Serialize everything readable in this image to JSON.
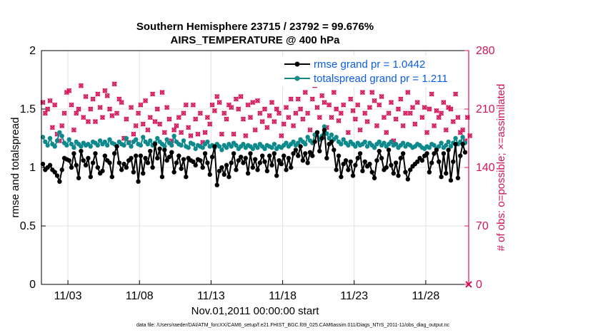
{
  "chart_data": {
    "type": "line",
    "title": [
      "Southern Hemisphere 23715 / 23792 = 99.676%",
      "AIRS_TEMPERATURE @ 400 hPa"
    ],
    "xlabel": "Nov.01,2011 00:00:00 start",
    "ylabel": "rmse and totalspread",
    "y2label": "# of obs: o=possible; ×=assimilated",
    "x_range_days": [
      1.15,
      31.0
    ],
    "xticks": [
      {
        "day": 3,
        "label": "11/03"
      },
      {
        "day": 8,
        "label": "11/08"
      },
      {
        "day": 13,
        "label": "11/13"
      },
      {
        "day": 18,
        "label": "11/18"
      },
      {
        "day": 23,
        "label": "11/23"
      },
      {
        "day": 28,
        "label": "11/28"
      }
    ],
    "ylim": [
      0,
      2
    ],
    "yticks": [
      "0",
      "0.5",
      "1",
      "1.5",
      "2"
    ],
    "y2lim": [
      0,
      280
    ],
    "y2ticks": [
      "0",
      "70",
      "140",
      "210",
      "280"
    ],
    "legend_position": "top-right",
    "colors": {
      "rmse": "#000000",
      "spread": "#0e8a8c",
      "obs": "#d4145a",
      "legend_text": "#0b5ce6"
    },
    "series": [
      {
        "name": "rmse grand pr = 1.0442",
        "axis": "left",
        "color": "#000000",
        "values": [
          1.03,
          0.98,
          1.0,
          1.02,
          0.98,
          0.96,
          0.93,
          0.88,
          0.98,
          1.08,
          1.07,
          1.06,
          1.0,
          1.12,
          1.02,
          0.91,
          1.14,
          1.06,
          1.02,
          1.08,
          0.92,
          1.04,
          1.12,
          1.0,
          0.95,
          0.97,
          1.1,
          1.06,
          1.04,
          0.92,
          1.12,
          1.18,
          1.04,
          0.98,
          1.03,
          1.0,
          1.06,
          1.08,
          0.96,
          1.1,
          0.88,
          1.1,
          0.95,
          1.08,
          1.04,
          1.14,
          1.0,
          1.2,
          1.08,
          1.16,
          0.92,
          1.15,
          1.06,
          1.09,
          1.13,
          0.96,
          1.04,
          1.1,
          0.99,
          1.07,
          0.92,
          1.08,
          1.06,
          1.05,
          1.02,
          1.07,
          1.06,
          1.0,
          1.12,
          1.04,
          0.94,
          1.09,
          1.18,
          0.85,
          0.97,
          1.0,
          0.94,
          1.02,
          0.92,
          1.04,
          1.12,
          0.98,
          1.06,
          1.09,
          1.04,
          1.08,
          0.95,
          1.12,
          1.0,
          1.07,
          0.98,
          1.04,
          1.1,
          1.05,
          0.97,
          1.1,
          1.02,
          1.12,
          0.93,
          1.06,
          1.03,
          1.1,
          0.98,
          1.08,
          1.0,
          1.12,
          1.15,
          1.1,
          1.18,
          1.06,
          1.12,
          1.04,
          1.13,
          1.1,
          1.22,
          1.3,
          1.14,
          1.25,
          1.32,
          1.08,
          1.2,
          1.22,
          1.15,
          0.98,
          1.1,
          0.92,
          1.03,
          1.06,
          0.98,
          1.05,
          0.93,
          1.02,
          1.08,
          1.12,
          0.97,
          1.05,
          1.01,
          1.03,
          0.96,
          0.91,
          1.06,
          1.14,
          1.08,
          0.98,
          1.0,
          1.15,
          1.02,
          0.95,
          1.04,
          0.93,
          1.08,
          1.12,
          0.96,
          0.9,
          0.98,
          1.01,
          1.03,
          1.05,
          1.08,
          1.06,
          1.1,
          1.12,
          0.96,
          1.04,
          1.12,
          1.15,
          1.05,
          0.92,
          1.12,
          0.95,
          1.15,
          0.89,
          1.05,
          1.2,
          0.91,
          1.1,
          1.2,
          1.13
        ]
      },
      {
        "name": "totalspread grand pr = 1.211",
        "axis": "left",
        "color": "#0e8a8c",
        "values": [
          1.26,
          1.22,
          1.19,
          1.25,
          1.2,
          1.18,
          1.23,
          1.3,
          1.27,
          1.21,
          1.19,
          1.24,
          1.2,
          1.17,
          1.22,
          1.2,
          1.18,
          1.21,
          1.19,
          1.2,
          1.18,
          1.22,
          1.21,
          1.19,
          1.23,
          1.2,
          1.22,
          1.19,
          1.24,
          1.21,
          1.2,
          1.18,
          1.22,
          1.2,
          1.19,
          1.25,
          1.21,
          1.18,
          1.22,
          1.24,
          1.2,
          1.19,
          1.26,
          1.22,
          1.2,
          1.23,
          1.19,
          1.21,
          1.25,
          1.22,
          1.2,
          1.18,
          1.24,
          1.21,
          1.19,
          1.27,
          1.22,
          1.2,
          1.19,
          1.23,
          1.18,
          1.17,
          1.21,
          1.2,
          1.16,
          1.19,
          1.18,
          1.17,
          1.2,
          1.22,
          1.18,
          1.19,
          1.17,
          1.2,
          1.18,
          1.15,
          1.19,
          1.17,
          1.2,
          1.18,
          1.21,
          1.19,
          1.16,
          1.18,
          1.2,
          1.17,
          1.19,
          1.18,
          1.16,
          1.19,
          1.17,
          1.2,
          1.18,
          1.16,
          1.19,
          1.18,
          1.17,
          1.2,
          1.16,
          1.18,
          1.17,
          1.19,
          1.21,
          1.18,
          1.2,
          1.22,
          1.19,
          1.21,
          1.24,
          1.22,
          1.2,
          1.26,
          1.23,
          1.21,
          1.28,
          1.3,
          1.24,
          1.27,
          1.35,
          1.29,
          1.25,
          1.28,
          1.24,
          1.26,
          1.22,
          1.2,
          1.24,
          1.21,
          1.19,
          1.22,
          1.2,
          1.18,
          1.21,
          1.19,
          1.2,
          1.22,
          1.18,
          1.21,
          1.19,
          1.17,
          1.2,
          1.22,
          1.19,
          1.21,
          1.18,
          1.2,
          1.22,
          1.19,
          1.2,
          1.17,
          1.19,
          1.21,
          1.18,
          1.2,
          1.19,
          1.17,
          1.18,
          1.2,
          1.19,
          1.17,
          1.16,
          1.18,
          1.17,
          1.2,
          1.19,
          1.16,
          1.18,
          1.21,
          1.17,
          1.19,
          1.22,
          1.18,
          1.21,
          1.25,
          1.2,
          1.22,
          1.26,
          1.21
        ]
      },
      {
        "name": "observations",
        "axis": "right",
        "color": "#d4145a",
        "values": [
          218,
          205,
          210,
          220,
          188,
          215,
          180,
          172,
          190,
          205,
          230,
          232,
          215,
          185,
          205,
          210,
          238,
          200,
          225,
          195,
          210,
          222,
          195,
          228,
          212,
          200,
          232,
          226,
          210,
          202,
          240,
          205,
          222,
          218,
          175,
          198,
          170,
          212,
          180,
          190,
          205,
          215,
          192,
          220,
          185,
          200,
          228,
          195,
          210,
          192,
          230,
          182,
          212,
          198,
          172,
          185,
          190,
          200,
          182,
          205,
          215,
          188,
          178,
          215,
          198,
          180,
          205,
          170,
          182,
          200,
          192,
          215,
          208,
          225,
          218,
          180,
          205,
          198,
          215,
          212,
          180,
          222,
          210,
          225,
          198,
          178,
          215,
          200,
          218,
          185,
          220,
          205,
          195,
          210,
          188,
          202,
          218,
          195,
          210,
          205,
          178,
          192,
          212,
          200,
          222,
          190,
          205,
          222,
          210,
          198,
          230,
          205,
          185,
          222,
          238,
          212,
          200,
          226,
          218,
          188,
          215,
          200,
          230,
          210,
          196,
          205,
          215,
          240,
          182,
          222,
          208,
          198,
          215,
          185,
          230,
          205,
          195,
          212,
          230,
          220,
          190,
          215,
          225,
          200,
          182,
          205,
          218,
          172,
          198,
          210,
          222,
          190,
          205,
          230,
          205,
          212,
          192,
          218,
          240,
          200,
          212,
          182,
          210,
          228,
          190,
          208,
          200,
          205,
          218,
          185,
          212,
          210,
          195,
          228,
          200,
          182,
          185,
          172,
          200,
          178
        ]
      }
    ],
    "footer": "data file: /Users/raeder/DAI/ATM_forcXX/CAM6_setup/f.e21.FHIST_BGC.f09_025.CAM6assim.011/Diags_NTrS_2011-11/obs_diag_output.nc"
  }
}
